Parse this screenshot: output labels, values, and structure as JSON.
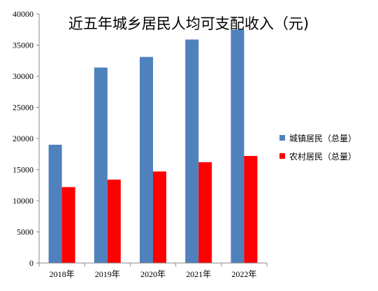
{
  "chart_data": {
    "type": "bar",
    "title": "近五年城乡居民人均可支配收入（元)",
    "categories": [
      "2018年",
      "2019年",
      "2020年",
      "2021年",
      "2022年"
    ],
    "series": [
      {
        "name": "城镇居民（总量）",
        "color": "#4F81BD",
        "values": [
          19000,
          31400,
          33100,
          35900,
          37500
        ]
      },
      {
        "name": "农村居民（总量）",
        "color": "#FF0000",
        "values": [
          12200,
          13400,
          14700,
          16200,
          17200
        ]
      }
    ],
    "ylim": [
      0,
      40000
    ],
    "yticks": [
      0,
      5000,
      10000,
      15000,
      20000,
      25000,
      30000,
      35000,
      40000
    ],
    "xlabel": "",
    "ylabel": "",
    "grid": false,
    "legend_position": "right"
  }
}
